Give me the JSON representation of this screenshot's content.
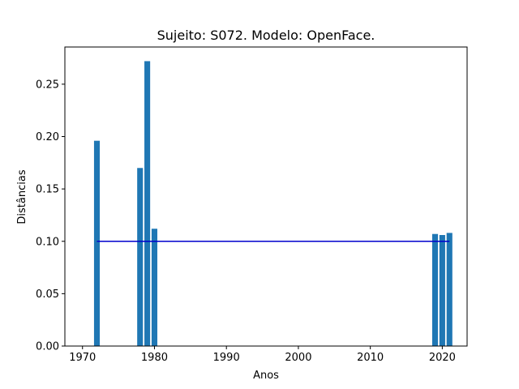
{
  "chart_data": {
    "type": "bar",
    "title": "Sujeito: S072. Modelo: OpenFace.",
    "xlabel": "Anos",
    "ylabel": "Distâncias",
    "xlim": [
      1967.55,
      2023.45
    ],
    "ylim": [
      0,
      0.2855
    ],
    "xticks": [
      1970,
      1980,
      1990,
      2000,
      2010,
      2020
    ],
    "yticks": [
      0.0,
      0.05,
      0.1,
      0.15,
      0.2,
      0.25
    ],
    "ytick_labels": [
      "0.00",
      "0.05",
      "0.10",
      "0.15",
      "0.20",
      "0.25"
    ],
    "bar_width_years": 0.8,
    "bar_color": "#1f77b4",
    "grid": false,
    "x": [
      1972,
      1978,
      1979,
      1980,
      2019,
      2020,
      2021
    ],
    "values": [
      0.196,
      0.17,
      0.272,
      0.112,
      0.107,
      0.106,
      0.108
    ],
    "threshold_line": {
      "y": 0.1,
      "x_start": 1972,
      "x_end": 2021,
      "color": "#0000cc"
    }
  }
}
